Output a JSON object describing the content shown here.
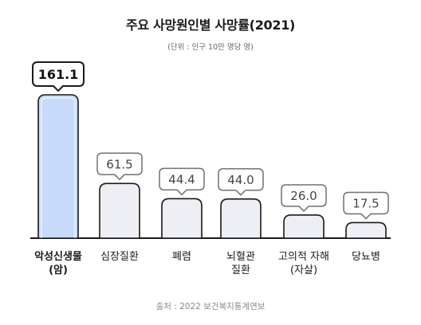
{
  "title": "주요 사망원인별 사망률(2021)",
  "subtitle": "(단위 : 인구 10만 명당 명)",
  "source": "출처 : 2022 보건복지통계연보",
  "colors": {
    "highlight_fill": "#c8dafa",
    "bar_fill": "#eeeff4",
    "outline": "#1a1a1a",
    "callout_outline": "#707070"
  },
  "chart_data": {
    "type": "bar",
    "title": "주요 사망원인별 사망률(2021)",
    "subtitle": "(단위 : 인구 10만 명당 명)",
    "unit": "인구 10만 명당 명",
    "categories": [
      "악성신생물\n(암)",
      "심장질환",
      "폐렴",
      "뇌혈관\n질환",
      "고의적 자해\n(자살)",
      "당뇨병"
    ],
    "values": [
      161.1,
      61.5,
      44.4,
      44.0,
      26.0,
      17.5
    ],
    "value_labels": [
      "161.1",
      "61.5",
      "44.4",
      "44.0",
      "26.0",
      "17.5"
    ],
    "highlight_index": 0,
    "grid": false,
    "legend": "none"
  }
}
